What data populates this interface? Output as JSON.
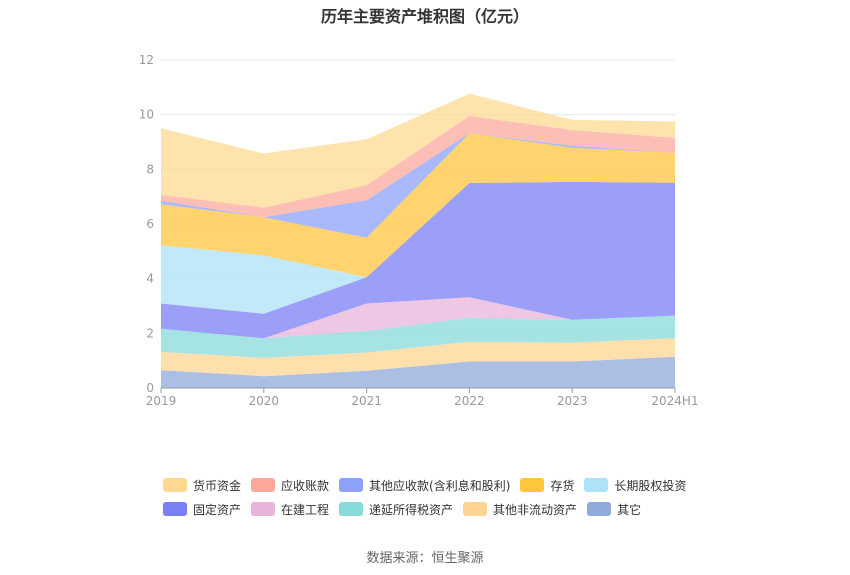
{
  "chart_data": {
    "type": "area",
    "stacked": true,
    "title": "历年主要资产堆积图（亿元）",
    "categories": [
      "2019",
      "2020",
      "2021",
      "2022",
      "2023",
      "2024H1"
    ],
    "ylim": [
      0,
      12
    ],
    "yticks": [
      "0",
      "2",
      "4",
      "6",
      "8",
      "10",
      "12"
    ],
    "grid": true,
    "legend_position": "bottom",
    "series": [
      {
        "name": "其它",
        "color": "#8faadc",
        "values": [
          0.65,
          0.43,
          0.63,
          0.97,
          0.97,
          1.14
        ]
      },
      {
        "name": "其他非流动资产",
        "color": "#ffd591",
        "values": [
          0.67,
          0.67,
          0.67,
          0.72,
          0.69,
          0.68
        ]
      },
      {
        "name": "递延所得税资产",
        "color": "#87dbd8",
        "values": [
          0.85,
          0.72,
          0.79,
          0.88,
          0.84,
          0.83
        ]
      },
      {
        "name": "在建工程",
        "color": "#e8b4dc",
        "values": [
          0.0,
          0.0,
          1.0,
          0.75,
          0.0,
          0.0
        ]
      },
      {
        "name": "固定资产",
        "color": "#7b7ff5",
        "values": [
          0.92,
          0.9,
          0.96,
          4.18,
          5.04,
          4.86
        ]
      },
      {
        "name": "长期股权投资",
        "color": "#aee2f8",
        "values": [
          2.13,
          2.13,
          0.0,
          0.0,
          0.0,
          0.0
        ]
      },
      {
        "name": "存货",
        "color": "#ffc53d",
        "values": [
          1.5,
          1.4,
          1.45,
          1.82,
          1.25,
          1.09
        ]
      },
      {
        "name": "其他应收款(含利息和股利)",
        "color": "#8ea2fb",
        "values": [
          0.13,
          0.0,
          1.37,
          0.0,
          0.07,
          0.0
        ]
      },
      {
        "name": "应收账款",
        "color": "#fca99c",
        "values": [
          0.22,
          0.35,
          0.55,
          0.63,
          0.58,
          0.55
        ]
      },
      {
        "name": "货币资金",
        "color": "#ffd991",
        "values": [
          2.43,
          1.98,
          1.68,
          0.82,
          0.37,
          0.6
        ]
      }
    ],
    "source": "数据来源：恒生聚源"
  },
  "legend": [
    {
      "label": "货币资金",
      "color": "#ffd991"
    },
    {
      "label": "应收账款",
      "color": "#fca99c"
    },
    {
      "label": "其他应收款(含利息和股利)",
      "color": "#8ea2fb"
    },
    {
      "label": "存货",
      "color": "#ffc53d"
    },
    {
      "label": "长期股权投资",
      "color": "#aee2f8"
    },
    {
      "label": "固定资产",
      "color": "#7b7ff5"
    },
    {
      "label": "在建工程",
      "color": "#e8b4dc"
    },
    {
      "label": "递延所得税资产",
      "color": "#87dbd8"
    },
    {
      "label": "其他非流动资产",
      "color": "#ffd591"
    },
    {
      "label": "其它",
      "color": "#8faadc"
    }
  ]
}
